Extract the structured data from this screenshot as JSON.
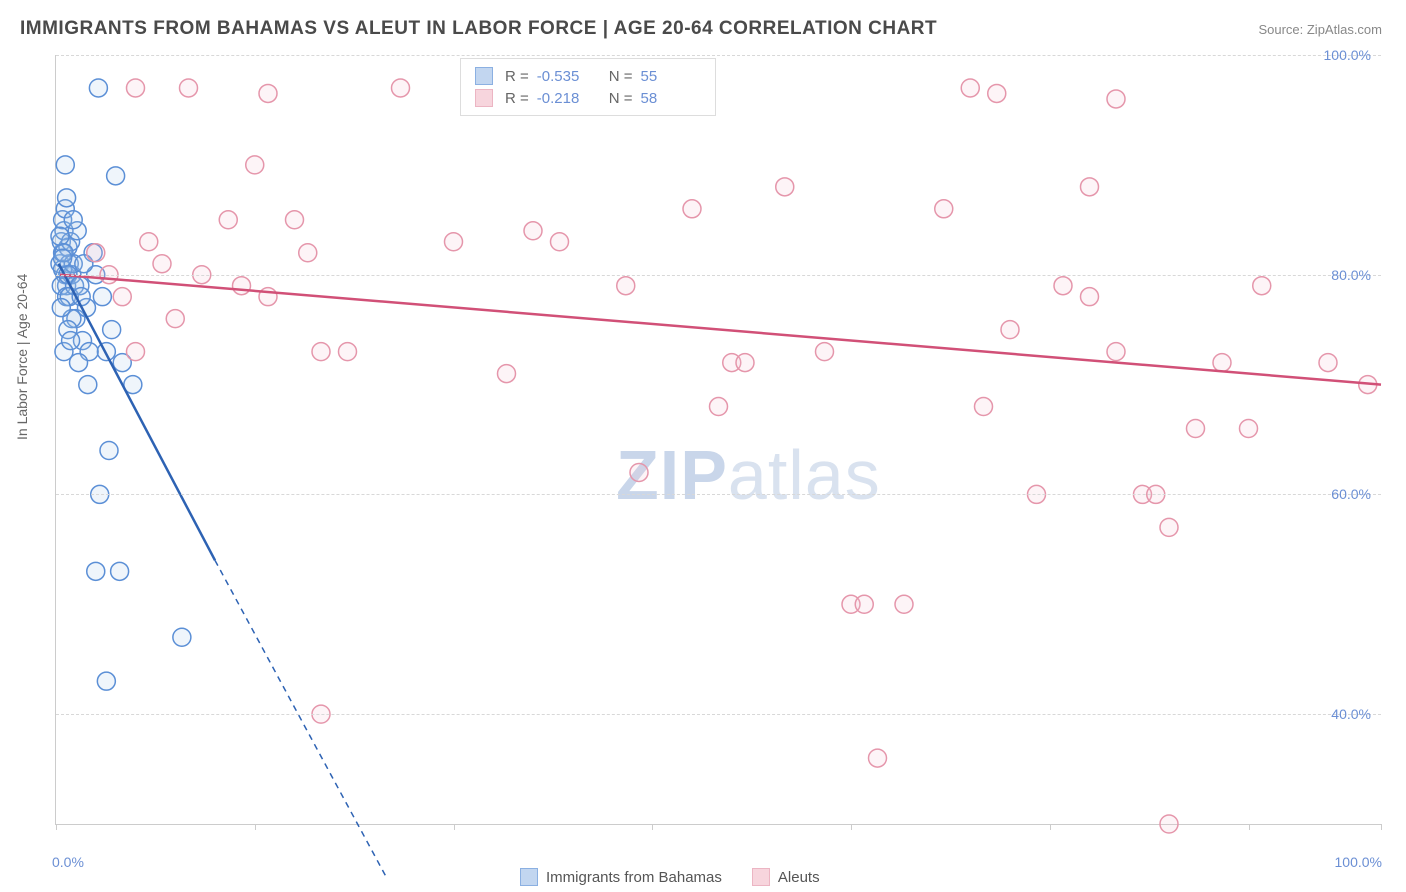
{
  "title": "IMMIGRANTS FROM BAHAMAS VS ALEUT IN LABOR FORCE | AGE 20-64 CORRELATION CHART",
  "source_label": "Source: ",
  "source_value": "ZipAtlas.com",
  "yaxis_title": "In Labor Force | Age 20-64",
  "watermark_bold": "ZIP",
  "watermark_light": "atlas",
  "chart": {
    "type": "scatter-correlation",
    "xlim": [
      0,
      100
    ],
    "ylim": [
      30,
      100
    ],
    "y_ticks": [
      40,
      60,
      80,
      100
    ],
    "y_tick_labels": [
      "40.0%",
      "60.0%",
      "80.0%",
      "100.0%"
    ],
    "x_ticks": [
      0,
      15,
      30,
      45,
      60,
      75,
      90,
      100
    ],
    "x_min_label": "0.0%",
    "x_max_label": "100.0%",
    "background_color": "#ffffff",
    "grid_color": "#d8d8d8",
    "axis_color": "#cccccc",
    "tick_label_color": "#6b8fd4",
    "marker_radius": 9,
    "marker_stroke_width": 1.5,
    "marker_fill_opacity": 0.18,
    "trend_line_width": 2.5,
    "trend_dash": "6 5",
    "series": [
      {
        "name": "Immigrants from Bahamas",
        "color_stroke": "#5b8fd6",
        "color_fill": "#a9c5eb",
        "trend_color": "#2d62b3",
        "R": "-0.535",
        "N": "55",
        "trend_start": [
          0.2,
          81
        ],
        "trend_solid_end": [
          12,
          54
        ],
        "trend_dash_end": [
          25,
          25
        ],
        "points": [
          [
            0.3,
            81
          ],
          [
            0.5,
            82
          ],
          [
            0.7,
            80
          ],
          [
            0.4,
            83
          ],
          [
            0.8,
            79
          ],
          [
            0.6,
            84
          ],
          [
            1.0,
            81
          ],
          [
            0.9,
            82.5
          ],
          [
            0.5,
            85
          ],
          [
            1.2,
            80
          ],
          [
            0.4,
            79
          ],
          [
            1.1,
            83
          ],
          [
            0.7,
            86
          ],
          [
            0.5,
            80.5
          ],
          [
            0.8,
            78
          ],
          [
            1.3,
            81
          ],
          [
            0.3,
            83.5
          ],
          [
            0.6,
            82
          ],
          [
            0.9,
            80
          ],
          [
            1.4,
            79
          ],
          [
            0.5,
            81.5
          ],
          [
            1.0,
            78
          ],
          [
            0.7,
            90
          ],
          [
            3.2,
            97
          ],
          [
            4.5,
            89
          ],
          [
            3.0,
            80
          ],
          [
            3.5,
            78
          ],
          [
            4.2,
            75
          ],
          [
            5.0,
            72
          ],
          [
            5.8,
            70
          ],
          [
            3.8,
            73
          ],
          [
            4.0,
            64
          ],
          [
            3.3,
            60
          ],
          [
            4.8,
            53
          ],
          [
            3.0,
            53
          ],
          [
            9.5,
            47
          ],
          [
            3.8,
            43
          ],
          [
            1.5,
            76
          ],
          [
            2.0,
            74
          ],
          [
            2.3,
            77
          ],
          [
            2.8,
            82
          ],
          [
            1.8,
            79
          ],
          [
            2.5,
            73
          ],
          [
            1.2,
            76
          ],
          [
            1.6,
            84
          ],
          [
            2.1,
            81
          ],
          [
            0.4,
            77
          ],
          [
            0.9,
            75
          ],
          [
            1.7,
            72
          ],
          [
            2.4,
            70
          ],
          [
            0.6,
            73
          ],
          [
            1.1,
            74
          ],
          [
            1.9,
            78
          ],
          [
            0.8,
            87
          ],
          [
            1.3,
            85
          ]
        ]
      },
      {
        "name": "Aleuts",
        "color_stroke": "#e596ab",
        "color_fill": "#f4c4d0",
        "trend_color": "#d15077",
        "R": "-0.218",
        "N": "58",
        "trend_start": [
          0.3,
          80
        ],
        "trend_solid_end": [
          100,
          70
        ],
        "trend_dash_end": [
          100,
          70
        ],
        "points": [
          [
            6,
            97
          ],
          [
            10,
            97
          ],
          [
            16,
            96.5
          ],
          [
            26,
            97
          ],
          [
            69,
            97
          ],
          [
            71,
            96.5
          ],
          [
            80,
            96
          ],
          [
            15,
            90
          ],
          [
            18,
            85
          ],
          [
            13,
            85
          ],
          [
            19,
            82
          ],
          [
            8,
            81
          ],
          [
            7,
            83
          ],
          [
            11,
            80
          ],
          [
            14,
            79
          ],
          [
            5,
            78
          ],
          [
            3,
            82
          ],
          [
            4,
            80
          ],
          [
            9,
            76
          ],
          [
            6,
            73
          ],
          [
            20,
            73
          ],
          [
            22,
            73
          ],
          [
            16,
            78
          ],
          [
            30,
            83
          ],
          [
            34,
            71
          ],
          [
            36,
            84
          ],
          [
            38,
            83
          ],
          [
            43,
            79
          ],
          [
            44,
            62
          ],
          [
            48,
            86
          ],
          [
            50,
            68
          ],
          [
            51,
            72
          ],
          [
            52,
            72
          ],
          [
            55,
            88
          ],
          [
            58,
            73
          ],
          [
            60,
            50
          ],
          [
            61,
            50
          ],
          [
            62,
            36
          ],
          [
            64,
            50
          ],
          [
            67,
            86
          ],
          [
            70,
            68
          ],
          [
            72,
            75
          ],
          [
            74,
            60
          ],
          [
            76,
            79
          ],
          [
            78,
            78
          ],
          [
            78,
            88
          ],
          [
            80,
            73
          ],
          [
            82,
            60
          ],
          [
            83,
            60
          ],
          [
            84,
            30
          ],
          [
            84,
            57
          ],
          [
            86,
            66
          ],
          [
            88,
            72
          ],
          [
            90,
            66
          ],
          [
            91,
            79
          ],
          [
            96,
            72
          ],
          [
            99,
            70
          ],
          [
            20,
            40
          ]
        ]
      }
    ]
  },
  "legend_top": {
    "r_label": "R =",
    "n_label": "N ="
  }
}
